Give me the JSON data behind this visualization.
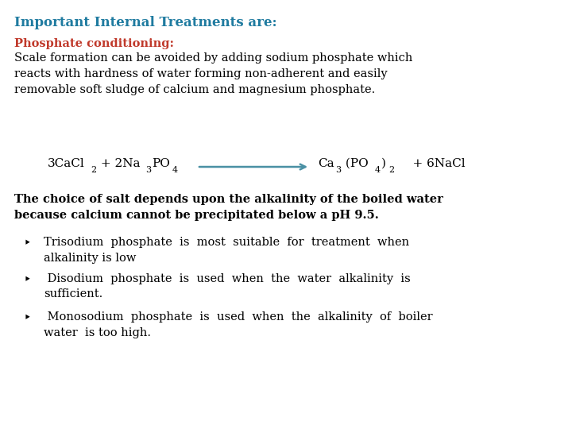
{
  "title": "Important Internal Treatments are:",
  "title_color": "#1F7BA0",
  "subtitle": "Phosphate conditioning:",
  "subtitle_color": "#C0392B",
  "body_text": "Scale formation can be avoided by adding sodium phosphate which\nreacts with hardness of water forming non-adherent and easily\nremovable soft sludge of calcium and magnesium phosphate.",
  "equation_arrow_color": "#4A90A4",
  "bold_text_line1": "The choice of salt depends upon the alkalinity of the boiled water",
  "bold_text_line2": "because calcium cannot be precipitated below a pH 9.5.",
  "bullet1_line1": "Trisodium  phosphate  is  most  suitable  for  treatment  when",
  "bullet1_line2": "alkalinity is low",
  "bullet2_line1": " Disodium  phosphate  is  used  when  the  water  alkalinity  is",
  "bullet2_line2": "sufficient.",
  "bullet3_line1": " Monosodium  phosphate  is  used  when  the  alkalinity  of  boiler",
  "bullet3_line2": "water  is too high.",
  "bg_color": "#FFFFFF",
  "text_color": "#000000",
  "font_size_title": 12,
  "font_size_body": 10.5,
  "font_size_bold": 10.5,
  "font_size_eq": 11
}
